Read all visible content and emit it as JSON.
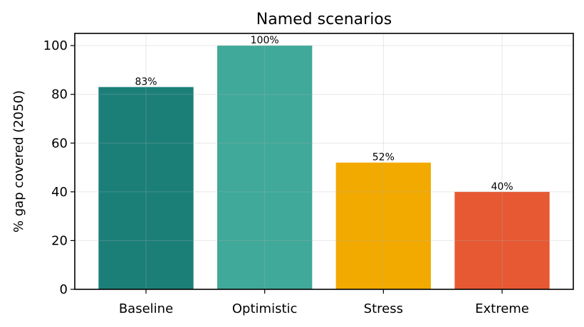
{
  "chart_data": {
    "type": "bar",
    "title": "Named scenarios",
    "xlabel": "",
    "ylabel": "% gap covered (2050)",
    "categories": [
      "Baseline",
      "Optimistic",
      "Stress",
      "Extreme"
    ],
    "values": [
      83,
      100,
      52,
      40
    ],
    "data_labels": [
      "83%",
      "100%",
      "52%",
      "40%"
    ],
    "colors": [
      "#1b7f78",
      "#40a999",
      "#f2aa00",
      "#e65933"
    ],
    "ylim": [
      0,
      105
    ],
    "yticks": [
      0,
      20,
      40,
      60,
      80,
      100
    ],
    "grid": true,
    "legend": "none"
  }
}
